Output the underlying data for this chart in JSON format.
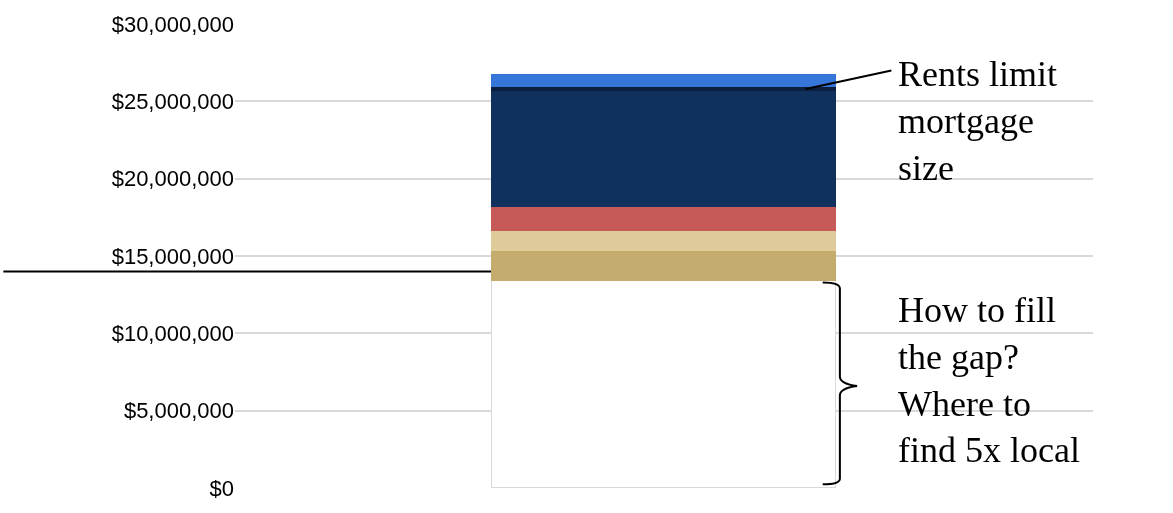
{
  "chart_data": {
    "type": "bar",
    "stacked": true,
    "categories": [
      null
    ],
    "series": [
      {
        "color": "#ffffff",
        "values": [
          13400000
        ]
      },
      {
        "color": "#c4ac6f",
        "values": [
          1950000
        ]
      },
      {
        "color": "#dfcb9a",
        "values": [
          1250000
        ]
      },
      {
        "color": "#c65a59",
        "values": [
          1600000
        ]
      },
      {
        "color": "#10305e",
        "values": [
          7500000
        ]
      },
      {
        "color": "#0d1f40",
        "values": [
          250000
        ]
      },
      {
        "color": "#3576d8",
        "values": [
          750000
        ]
      }
    ],
    "ylim": [
      0,
      30000000
    ],
    "yticks": [
      {
        "value": 0,
        "label": "$0"
      },
      {
        "value": 5000000,
        "label": "$5,000,000"
      },
      {
        "value": 10000000,
        "label": "$10,000,000"
      },
      {
        "value": 15000000,
        "label": "$15,000,000"
      },
      {
        "value": 20000000,
        "label": "$20,000,000"
      },
      {
        "value": 25000000,
        "label": "$25,000,000"
      },
      {
        "value": 30000000,
        "label": "$30,000,000"
      }
    ],
    "grid": "y",
    "tick_labels": "y",
    "ref_lines": [
      {
        "axis": "y",
        "value": 14000000,
        "color": "#000000"
      }
    ],
    "annotations": [
      "Rents limit\nmortgage\nsize",
      "How to fill\nthe gap?\nWhere to\nfind 5x local"
    ]
  }
}
